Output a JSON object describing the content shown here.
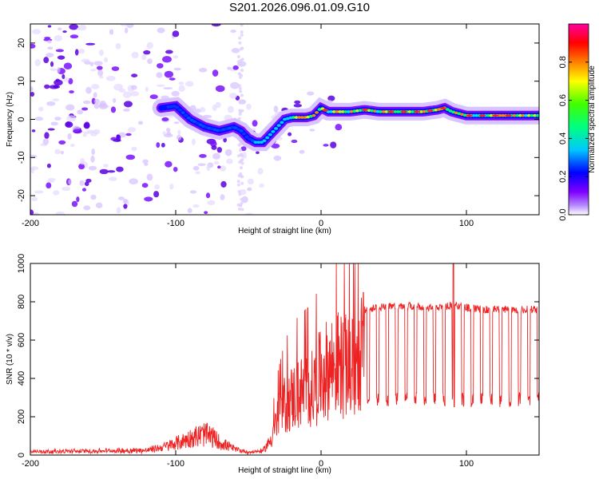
{
  "figure": {
    "title": "S201.2026.096.01.09.G10"
  },
  "chart_data": [
    {
      "type": "heatmap",
      "title": "",
      "xlabel": "Height of straight line (km)",
      "ylabel": "Frequency (Hz)",
      "xlim": [
        -200,
        150
      ],
      "ylim": [
        -25,
        25
      ],
      "xticks": [
        -200,
        -100,
        0,
        100
      ],
      "yticks": [
        -20,
        -10,
        0,
        10,
        20
      ],
      "xtick_labels": [
        "-200",
        "-100",
        "0",
        "100"
      ],
      "ytick_labels": [
        "-20",
        "-10",
        "0",
        "10",
        "20"
      ],
      "ridge": {
        "description_x": [
          -110,
          -100,
          -90,
          -80,
          -70,
          -60,
          -55,
          -50,
          -45,
          -40,
          -35,
          -30,
          -25,
          -20,
          -15,
          -10,
          -5,
          0,
          5,
          10,
          20,
          30,
          40,
          50,
          60,
          70,
          80,
          85,
          90,
          100,
          110,
          120,
          130,
          140,
          150
        ],
        "frequency": [
          3,
          3.5,
          0,
          -2,
          -3,
          -2,
          -3,
          -5,
          -6,
          -6,
          -4,
          -2,
          0,
          0.5,
          0.5,
          0.5,
          1,
          3,
          2,
          2,
          2,
          2.5,
          2,
          2,
          2,
          2,
          2.5,
          3,
          2,
          1,
          1,
          1,
          1,
          1,
          1
        ]
      },
      "colorbar": {
        "label": "Normalized spectral amplitude",
        "range": [
          0.0,
          1.0
        ],
        "ticks": [
          0.0,
          0.2,
          0.4,
          0.6,
          0.8
        ],
        "tick_labels": [
          "0.0",
          "0.2",
          "0.4",
          "0.6",
          "0.8"
        ],
        "colormap": [
          "#ffffff",
          "#7f00ff",
          "#0000ff",
          "#00ffff",
          "#00ff00",
          "#ffff00",
          "#ff0000",
          "#ff00ff"
        ]
      }
    },
    {
      "type": "line",
      "title": "",
      "xlabel": "Height of straight line (km)",
      "ylabel": "SNR (10 * v/v)",
      "xlim": [
        -200,
        150
      ],
      "ylim": [
        0,
        1000
      ],
      "xticks": [
        -200,
        -100,
        0,
        100
      ],
      "yticks": [
        0,
        200,
        400,
        600,
        800,
        1000
      ],
      "xtick_labels": [
        "-200",
        "-100",
        "0",
        "100"
      ],
      "ytick_labels": [
        "0",
        "200",
        "400",
        "600",
        "800",
        "1000"
      ],
      "series": [
        {
          "name": "SNR",
          "color": "#ee2222",
          "envelope_x": [
            -200,
            -150,
            -120,
            -110,
            -100,
            -90,
            -80,
            -75,
            -70,
            -60,
            -50,
            -40,
            -35,
            -30,
            -25,
            -20,
            -15,
            -10,
            -5,
            0,
            10,
            20,
            25,
            30,
            40,
            50,
            60,
            70,
            80,
            90,
            100,
            110,
            120,
            130,
            140,
            150
          ],
          "envelope_y": [
            20,
            25,
            30,
            50,
            80,
            120,
            150,
            130,
            90,
            40,
            15,
            25,
            100,
            250,
            350,
            400,
            430,
            450,
            460,
            560,
            640,
            600,
            620,
            780,
            790,
            800,
            800,
            790,
            790,
            800,
            790,
            780,
            780,
            780,
            780,
            780
          ],
          "dropout_floor": 250
        }
      ]
    }
  ]
}
